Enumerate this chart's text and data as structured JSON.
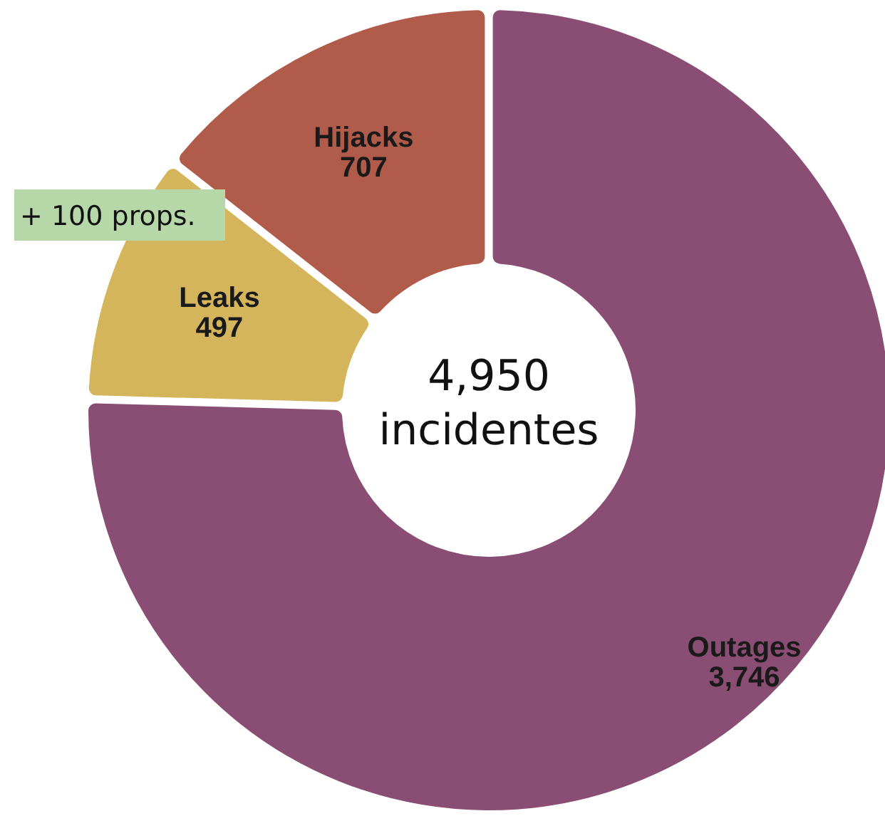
{
  "chart_data": {
    "type": "donut",
    "title": "4,950\nincidentes",
    "categories": [
      "Outages",
      "Leaks",
      "Hijacks"
    ],
    "values": [
      3746,
      497,
      707
    ],
    "colors": [
      "#8a4d73",
      "#d5b55b",
      "#b15b4b"
    ],
    "value_labels": [
      "3,746",
      "497",
      "707"
    ],
    "annotations": [
      "+ 100 props."
    ]
  }
}
